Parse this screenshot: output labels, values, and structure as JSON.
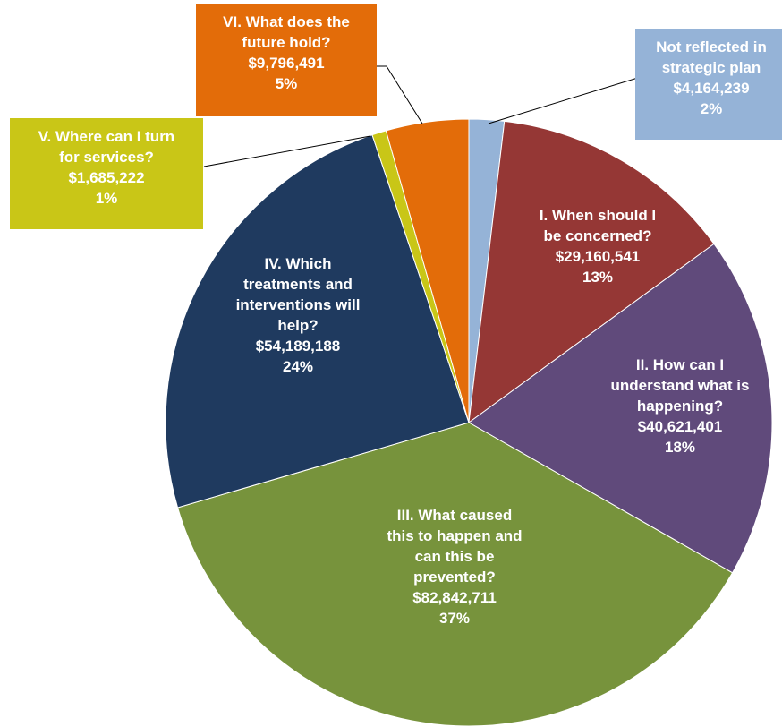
{
  "chart_data": {
    "type": "pie",
    "slices": [
      {
        "lines": [
          "Not reflected in",
          "strategic plan"
        ],
        "amount": "$4,164,239",
        "percent": "2%",
        "value": 4164239,
        "color": "#95b3d7"
      },
      {
        "lines": [
          "I. When should I",
          "be concerned?"
        ],
        "amount": "$29,160,541",
        "percent": "13%",
        "value": 29160541,
        "color": "#953735"
      },
      {
        "lines": [
          "II. How can I",
          "understand what is",
          "happening?"
        ],
        "amount": "$40,621,401",
        "percent": "18%",
        "value": 40621401,
        "color": "#604a7b"
      },
      {
        "lines": [
          "III. What caused",
          "this to happen and",
          "can this be",
          "prevented?"
        ],
        "amount": "$82,842,711",
        "percent": "37%",
        "value": 82842711,
        "color": "#77933c"
      },
      {
        "lines": [
          "IV. Which",
          "treatments and",
          "interventions will",
          "help?"
        ],
        "amount": "$54,189,188",
        "percent": "24%",
        "value": 54189188,
        "color": "#1f3a5f"
      },
      {
        "lines": [
          "V. Where can I turn",
          "for services?"
        ],
        "amount": "$1,685,222",
        "percent": "1%",
        "value": 1685222,
        "color": "#c9c617"
      },
      {
        "lines": [
          "VI. What does the",
          "future hold?"
        ],
        "amount": "$9,796,491",
        "percent": "5%",
        "value": 9796491,
        "color": "#e36c09"
      }
    ]
  }
}
